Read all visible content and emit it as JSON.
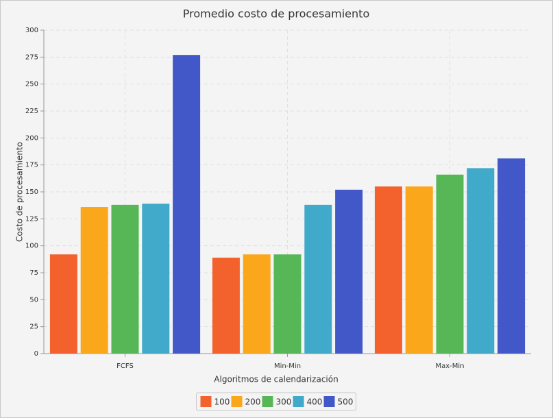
{
  "chart_data": {
    "type": "bar",
    "title": "Promedio costo de procesamiento",
    "x_label": "Algoritmos de calendarización",
    "y_label": "Costo de procesamiento",
    "categories": [
      "FCFS",
      "Min-Min",
      "Max-Min"
    ],
    "series": [
      {
        "name": "100",
        "color": "#f3622d",
        "values": [
          92,
          89,
          155
        ]
      },
      {
        "name": "200",
        "color": "#fba71b",
        "values": [
          136,
          92,
          155
        ]
      },
      {
        "name": "300",
        "color": "#57b757",
        "values": [
          138,
          92,
          166
        ]
      },
      {
        "name": "400",
        "color": "#41a9c9",
        "values": [
          139,
          138,
          172
        ]
      },
      {
        "name": "500",
        "color": "#4258c9",
        "values": [
          277,
          152,
          181
        ]
      }
    ],
    "ylim": [
      0,
      300
    ],
    "yticks": [
      0,
      25,
      50,
      75,
      100,
      125,
      150,
      175,
      200,
      225,
      250,
      275,
      300
    ],
    "grid": true,
    "legend": "bottom"
  }
}
